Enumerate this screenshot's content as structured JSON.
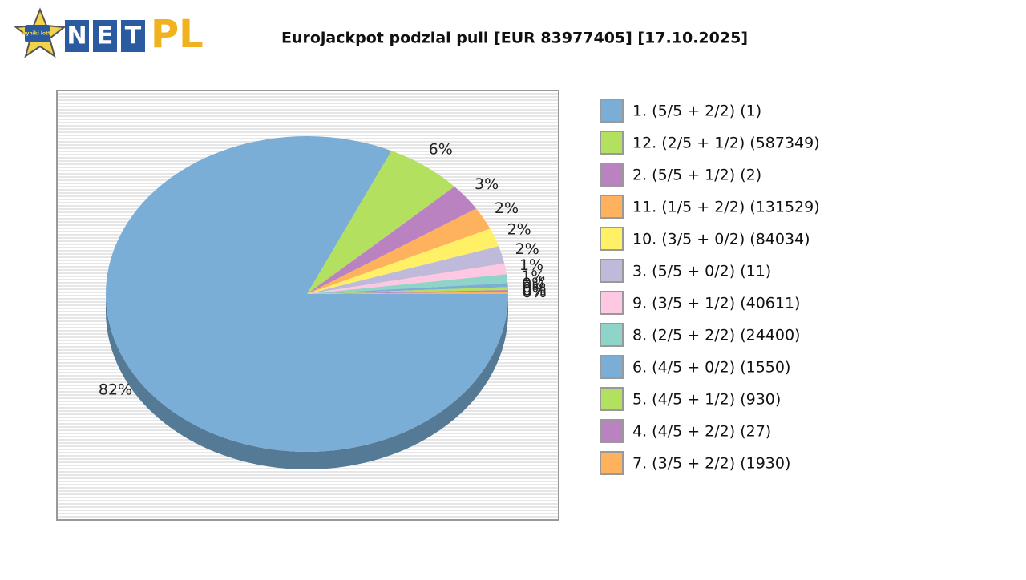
{
  "logo": {
    "badge": "wyniki lotto",
    "letters": [
      "N",
      "E",
      "T"
    ],
    "suffix": "PL"
  },
  "chart_data": {
    "type": "pie",
    "title": "Eurojackpot podzial puli [EUR 83977405] [17.10.2025]",
    "categories": [
      "1. (5/5 + 2/2) (1)",
      "12. (2/5 + 1/2) (587349)",
      "2. (5/5 + 1/2) (2)",
      "11. (1/5 + 2/2) (131529)",
      "10. (3/5 + 0/2) (84034)",
      "3. (5/5 + 0/2) (11)",
      "9. (3/5 + 1/2) (40611)",
      "8. (2/5 + 2/2) (24400)",
      "6. (4/5 + 0/2) (1550)",
      "5. (4/5 + 1/2) (930)",
      "4. (4/5 + 2/2) (27)",
      "7. (3/5 + 2/2) (1930)"
    ],
    "values": [
      81.9,
      6.2,
      2.8,
      2.3,
      1.9,
      1.8,
      1.1,
      0.9,
      0.4,
      0.3,
      0.2,
      0.2
    ],
    "value_labels": [
      "82%",
      "6%",
      "3%",
      "2%",
      "2%",
      "2%",
      "1%",
      "1%",
      "0%",
      "0%",
      "0%",
      "0%"
    ],
    "colors": [
      "#7aaed6",
      "#b3e05f",
      "#bb82c1",
      "#ffb25e",
      "#fff066",
      "#c0bada",
      "#ffc8e2",
      "#8fd4c8",
      "#7aaed6",
      "#b3e05f",
      "#bb82c1",
      "#ffb25e"
    ],
    "legend": "right"
  }
}
